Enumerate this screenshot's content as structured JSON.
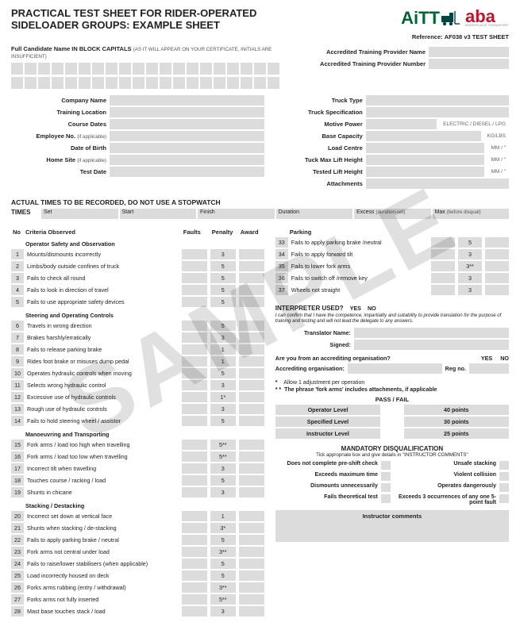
{
  "title": "PRACTICAL TEST SHEET FOR RIDER-OPERATED SIDELOADER GROUPS: EXAMPLE SHEET",
  "logos": {
    "aitt": "AiTT",
    "aba": "aba",
    "aba_sub": "WORKPLACE TRANSPORT"
  },
  "reference_label": "Reference:",
  "reference_value": "AF038 v3 TEST SHEET",
  "fullname_label": "Full Candidate Name IN BLOCK CAPITALS",
  "fullname_note": "(AS IT WILL APPEAR ON YOUR CERTIFICATE, INITIALS ARE INSUFFICIENT)",
  "left_fields": [
    "Company Name",
    "Training Location",
    "Course Dates",
    "Employee No. (if applicable)",
    "Date of Birth",
    "Home Site (if applicable)",
    "Test Date"
  ],
  "right_top_fields": [
    "Accredited Training Provider Name",
    "Accredited Training Provider Number"
  ],
  "right_truck_fields": [
    {
      "l": "Truck Type",
      "t": ""
    },
    {
      "l": "Truck Specification",
      "t": ""
    },
    {
      "l": "Motive Power",
      "t": "ELECTRIC / DIESEL / LPG"
    },
    {
      "l": "Base Capacity",
      "t": "KG/LBS"
    },
    {
      "l": "Load Centre",
      "t": "MM / \""
    },
    {
      "l": "Tuck Max Lift Height",
      "t": "MM / \""
    },
    {
      "l": "Tested Lift Height",
      "t": "MM / \""
    },
    {
      "l": "Attachments",
      "t": ""
    }
  ],
  "times_heading": "ACTUAL TIMES TO BE RECORDED, DO NOT USE A STOPWATCH",
  "times_label": "TIMES",
  "times_cols": [
    "Set",
    "Start",
    "Finish",
    "Duration",
    "Excess (duration-set)",
    "Max (before disqual)"
  ],
  "crit": {
    "headers": {
      "no": "No",
      "obs": "Criteria Observed",
      "f": "Faults",
      "p": "Penalty",
      "a": "Award"
    },
    "groups": [
      {
        "h": "Operator Safety and Observation",
        "rows": [
          {
            "n": 1,
            "t": "Mounts/dismounts incorrectly",
            "p": "3"
          },
          {
            "n": 2,
            "t": "Limbs/body outside confines of truck",
            "p": "5"
          },
          {
            "n": 3,
            "t": "Fails to check all round",
            "p": "5"
          },
          {
            "n": 4,
            "t": "Fails to look in direction of travel",
            "p": "5"
          },
          {
            "n": 5,
            "t": "Fails to use appropriate safety devices",
            "p": "5"
          }
        ]
      },
      {
        "h": "Steering and Operating Controls",
        "rows": [
          {
            "n": 6,
            "t": "Travels in wrong direction",
            "p": "5"
          },
          {
            "n": 7,
            "t": "Brakes harshly/erratically",
            "p": "3"
          },
          {
            "n": 8,
            "t": "Fails to release parking brake",
            "p": "1"
          },
          {
            "n": 9,
            "t": "Rides foot brake or misuses dump pedal",
            "p": "1"
          },
          {
            "n": 10,
            "t": "Operates hydraulic controls when moving",
            "p": "5"
          },
          {
            "n": 11,
            "t": "Selects wrong hydraulic control",
            "p": "3"
          },
          {
            "n": 12,
            "t": "Excessive use of hydraulic controls",
            "p": "1*"
          },
          {
            "n": 13,
            "t": "Rough use of hydraulic controls",
            "p": "3"
          },
          {
            "n": 14,
            "t": "Fails to hold steering wheel / assistor",
            "p": "5"
          }
        ]
      },
      {
        "h": "Manoeuvring and Transporting",
        "rows": [
          {
            "n": 15,
            "t": "Fork arms / load too high when travelling",
            "p": "5**"
          },
          {
            "n": 16,
            "t": "Fork arms / load too low when travelling",
            "p": "5**"
          },
          {
            "n": 17,
            "t": "Incorrect tilt when travelling",
            "p": "3"
          },
          {
            "n": 18,
            "t": "Touches course / racking / load",
            "p": "5"
          },
          {
            "n": 19,
            "t": "Shunts in chicane",
            "p": "3"
          }
        ]
      },
      {
        "h": "Stacking / Destacking",
        "rows": [
          {
            "n": 20,
            "t": "Incorrect set down at vertical face",
            "p": "1"
          },
          {
            "n": 21,
            "t": "Shunts when stacking / de-stacking",
            "p": "3*"
          },
          {
            "n": 22,
            "t": "Fails to apply parking brake / neutral",
            "p": "5"
          },
          {
            "n": 23,
            "t": "Fork arms not central under load",
            "p": "3**"
          },
          {
            "n": 24,
            "t": "Fails to raise/lower stabilisers (when applicable)",
            "p": "5"
          },
          {
            "n": 25,
            "t": "Load incorrectly housed on deck",
            "p": "5"
          },
          {
            "n": 26,
            "t": "Forks arms rubbing (entry / withdrawal)",
            "p": "3**"
          },
          {
            "n": 27,
            "t": "Forks arms not fully inserted",
            "p": "5**"
          },
          {
            "n": 28,
            "t": "Mast base touches stack / load",
            "p": "3"
          }
        ]
      }
    ]
  },
  "parking": {
    "header": "Parking",
    "rows": [
      {
        "n": 33,
        "t": "Fails to apply parking brake /neutral",
        "p": "5"
      },
      {
        "n": 34,
        "t": "Fails to apply forward tilt",
        "p": "3"
      },
      {
        "n": 35,
        "t": "Fails to lower fork arms",
        "p": "3**"
      },
      {
        "n": 36,
        "t": "Fails to switch off /remove key",
        "p": "3"
      },
      {
        "n": 37,
        "t": "Wheels not straight",
        "p": "3"
      }
    ]
  },
  "interp": {
    "hd": "INTERPRETER USED?",
    "yes": "YES",
    "no": "NO",
    "note": "I can confirm that I have the competence, impartiality and suitability to provide translation for the purpose of training and testing and will not lead the delegate to any answers.",
    "tname": "Translator Name:",
    "signed": "Signed:",
    "q1": "Are you from an accrediting organisation?",
    "q2": "Accrediting organisation:",
    "regno": "Reg no."
  },
  "foot1": "Allow 1 adjustment per operation",
  "foot2": "The phrase 'fork arms' includes attachments, if applicable",
  "star": "*",
  "dstar": "* *",
  "passfail": "PASS / FAIL",
  "levels": [
    {
      "l": "Operator Level",
      "p": "40 points"
    },
    {
      "l": "Specified Level",
      "p": "30 points"
    },
    {
      "l": "Instructor Level",
      "p": "25 points"
    }
  ],
  "mand": {
    "t": "MANDATORY DISQUALIFICATION",
    "s": "Tick appropriate box and give details in \"INSTRUCTOR COMMENTS\"",
    "items": [
      [
        "Does not complete pre-shift check",
        "Unsafe stacking"
      ],
      [
        "Exceeds maximum time",
        "Violent collision"
      ],
      [
        "Dismounts unnecessarily",
        "Operates dangerously"
      ],
      [
        "Fails theoretical test",
        "Exceeds 3 occurrences of any one 5-point fault"
      ]
    ]
  },
  "inst_comments": "Instructor comments",
  "watermark": "SAMPLE"
}
